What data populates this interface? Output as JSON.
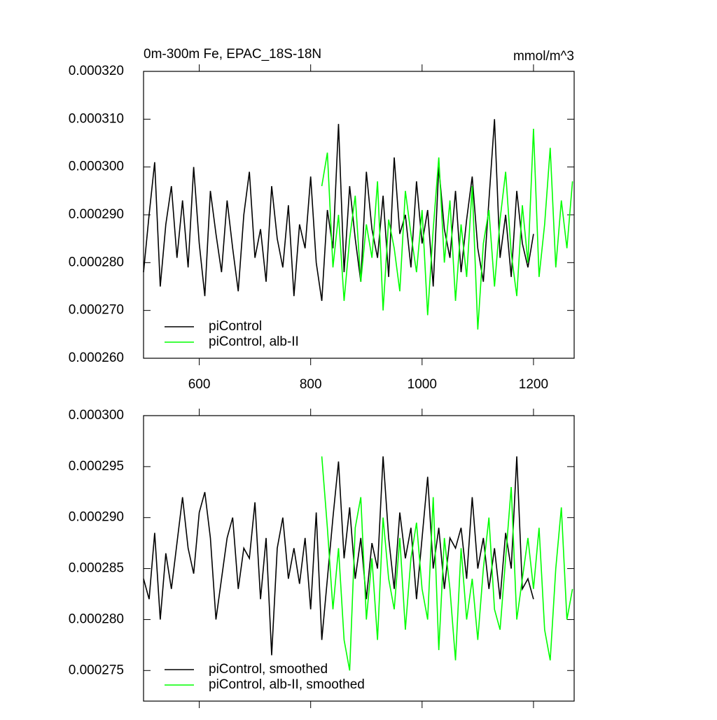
{
  "chart_data": [
    {
      "type": "line",
      "title": "0m-300m Fe, EPAC_18S-18N",
      "units": "mmol/m^3",
      "x": [
        500,
        510,
        520,
        530,
        540,
        550,
        560,
        570,
        580,
        590,
        600,
        610,
        620,
        630,
        640,
        650,
        660,
        670,
        680,
        690,
        700,
        710,
        720,
        730,
        740,
        750,
        760,
        770,
        780,
        790,
        800,
        810,
        820,
        830,
        840,
        850,
        860,
        870,
        880,
        890,
        900,
        910,
        920,
        930,
        940,
        950,
        960,
        970,
        980,
        990,
        1000,
        1010,
        1020,
        1030,
        1040,
        1050,
        1060,
        1070,
        1080,
        1090,
        1100,
        1110,
        1120,
        1130,
        1140,
        1150,
        1160,
        1170,
        1180,
        1190,
        1200,
        1210,
        1220,
        1230,
        1240,
        1250,
        1260,
        1270
      ],
      "series": [
        {
          "name": "piControl",
          "color": "#000000",
          "values": [
            0.000278,
            0.00029,
            0.000301,
            0.000275,
            0.000288,
            0.000296,
            0.000281,
            0.000293,
            0.000279,
            0.0003,
            0.000284,
            0.000273,
            0.000295,
            0.000286,
            0.000278,
            0.000293,
            0.000283,
            0.000274,
            0.00029,
            0.000299,
            0.000281,
            0.000287,
            0.000276,
            0.000296,
            0.000285,
            0.000279,
            0.000292,
            0.000273,
            0.000288,
            0.000283,
            0.000298,
            0.00028,
            0.000272,
            0.000291,
            0.000283,
            0.000309,
            0.000278,
            0.000296,
            0.000285,
            0.000276,
            0.000299,
            0.000287,
            0.000281,
            0.000294,
            0.000277,
            0.000302,
            0.000286,
            0.00029,
            0.000279,
            0.000297,
            0.000284,
            0.000291,
            0.000275,
            0.0003,
            0.000287,
            0.000281,
            0.000295,
            0.000278,
            0.000289,
            0.000298,
            0.000283,
            0.000276,
            0.000293,
            0.00031,
            0.000281,
            0.00029,
            0.000277,
            0.000295,
            0.000284,
            0.000279,
            0.000286,
            null,
            null,
            null,
            null,
            null,
            null,
            null
          ]
        },
        {
          "name": "piControl, alb-II",
          "color": "#00ff00",
          "values": [
            null,
            null,
            null,
            null,
            null,
            null,
            null,
            null,
            null,
            null,
            null,
            null,
            null,
            null,
            null,
            null,
            null,
            null,
            null,
            null,
            null,
            null,
            null,
            null,
            null,
            null,
            null,
            null,
            null,
            null,
            null,
            null,
            0.000296,
            0.000303,
            0.000279,
            0.00029,
            0.000272,
            0.000285,
            0.000294,
            0.000276,
            0.000288,
            0.000281,
            0.000297,
            0.00027,
            0.000289,
            0.000283,
            0.000274,
            0.000295,
            0.000286,
            0.000278,
            0.000291,
            0.000269,
            0.000287,
            0.000302,
            0.00028,
            0.000293,
            0.000272,
            0.000288,
            0.000277,
            0.000296,
            0.000266,
            0.000284,
            0.000291,
            0.000275,
            0.000289,
            0.000299,
            0.000282,
            0.000273,
            0.000292,
            0.00028,
            0.000308,
            0.000277,
            0.000288,
            0.000304,
            0.000279,
            0.000293,
            0.000283,
            0.000297
          ]
        }
      ],
      "xlim": [
        500,
        1273
      ],
      "xticks": [
        600,
        800,
        1000,
        1200
      ],
      "x_tick_labels": true,
      "ylim": [
        0.00026,
        0.00032
      ],
      "yticks": [
        {
          "value": 0.00026,
          "label": "0.000260"
        },
        {
          "value": 0.00027,
          "label": "0.000270"
        },
        {
          "value": 0.00028,
          "label": "0.000280"
        },
        {
          "value": 0.00029,
          "label": "0.000290"
        },
        {
          "value": 0.0003,
          "label": "0.000300"
        },
        {
          "value": 0.00031,
          "label": "0.000310"
        },
        {
          "value": 0.00032,
          "label": "0.000320"
        }
      ],
      "legend": "lower left"
    },
    {
      "type": "line",
      "x": [
        500,
        510,
        520,
        530,
        540,
        550,
        560,
        570,
        580,
        590,
        600,
        610,
        620,
        630,
        640,
        650,
        660,
        670,
        680,
        690,
        700,
        710,
        720,
        730,
        740,
        750,
        760,
        770,
        780,
        790,
        800,
        810,
        820,
        830,
        840,
        850,
        860,
        870,
        880,
        890,
        900,
        910,
        920,
        930,
        940,
        950,
        960,
        970,
        980,
        990,
        1000,
        1010,
        1020,
        1030,
        1040,
        1050,
        1060,
        1070,
        1080,
        1090,
        1100,
        1110,
        1120,
        1130,
        1140,
        1150,
        1160,
        1170,
        1180,
        1190,
        1200,
        1210,
        1220,
        1230,
        1240,
        1250,
        1260,
        1270
      ],
      "series": [
        {
          "name": "piControl, smoothed",
          "color": "#000000",
          "values": [
            0.000284,
            0.000282,
            0.0002885,
            0.00028,
            0.0002865,
            0.000283,
            0.0002875,
            0.000292,
            0.000287,
            0.0002845,
            0.0002905,
            0.0002925,
            0.000288,
            0.00028,
            0.000284,
            0.000288,
            0.00029,
            0.000283,
            0.000287,
            0.000286,
            0.0002915,
            0.000282,
            0.000288,
            0.0002765,
            0.000287,
            0.00029,
            0.000284,
            0.000287,
            0.0002835,
            0.000288,
            0.000281,
            0.0002905,
            0.000278,
            0.000284,
            0.00029,
            0.0002955,
            0.000286,
            0.000291,
            0.000284,
            0.000288,
            0.000282,
            0.0002875,
            0.000285,
            0.000296,
            0.000288,
            0.000283,
            0.0002905,
            0.000286,
            0.000289,
            0.000282,
            0.000288,
            0.000294,
            0.000285,
            0.000289,
            0.000283,
            0.000288,
            0.000287,
            0.000289,
            0.000284,
            0.000292,
            0.000285,
            0.000288,
            0.000283,
            0.000287,
            0.000282,
            0.0002885,
            0.000285,
            0.000296,
            0.000283,
            0.000284,
            0.000282,
            null,
            null,
            null,
            null,
            null,
            null,
            null
          ]
        },
        {
          "name": "piControl, alb-II, smoothed",
          "color": "#00ff00",
          "values": [
            null,
            null,
            null,
            null,
            null,
            null,
            null,
            null,
            null,
            null,
            null,
            null,
            null,
            null,
            null,
            null,
            null,
            null,
            null,
            null,
            null,
            null,
            null,
            null,
            null,
            null,
            null,
            null,
            null,
            null,
            null,
            null,
            0.000296,
            0.000289,
            0.000281,
            0.000287,
            0.000278,
            0.000275,
            0.000289,
            0.000292,
            0.00028,
            0.000286,
            0.000278,
            0.00029,
            0.000284,
            0.000281,
            0.000288,
            0.000279,
            0.000286,
            0.0002895,
            0.000283,
            0.00028,
            0.000292,
            0.000277,
            0.000288,
            0.000283,
            0.000276,
            0.000287,
            0.00028,
            0.000284,
            0.000278,
            0.000285,
            0.00029,
            0.000281,
            0.000279,
            0.000286,
            0.000293,
            0.00028,
            0.000284,
            0.000288,
            0.000283,
            0.000289,
            0.000279,
            0.000276,
            0.000285,
            0.000291,
            0.00028,
            0.000283
          ]
        }
      ],
      "xlim": [
        500,
        1273
      ],
      "xticks": [
        600,
        800,
        1000,
        1200
      ],
      "x_tick_labels": false,
      "ylim": [
        0.000272,
        0.0003
      ],
      "yticks": [
        {
          "value": 0.000275,
          "label": "0.000275"
        },
        {
          "value": 0.00028,
          "label": "0.000280"
        },
        {
          "value": 0.000285,
          "label": "0.000285"
        },
        {
          "value": 0.00029,
          "label": "0.000290"
        },
        {
          "value": 0.000295,
          "label": "0.000295"
        },
        {
          "value": 0.0003,
          "label": "0.000300"
        }
      ],
      "legend": "lower left"
    }
  ]
}
